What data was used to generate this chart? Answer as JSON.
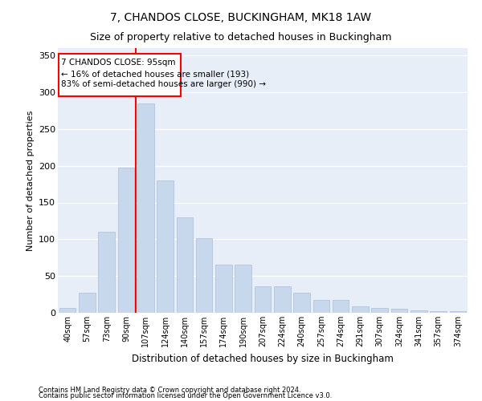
{
  "title": "7, CHANDOS CLOSE, BUCKINGHAM, MK18 1AW",
  "subtitle": "Size of property relative to detached houses in Buckingham",
  "xlabel": "Distribution of detached houses by size in Buckingham",
  "ylabel": "Number of detached properties",
  "bar_color": "#c8d8ec",
  "bar_edge_color": "#a8bedc",
  "background_color": "#e8eef8",
  "grid_color": "#ffffff",
  "categories": [
    "40sqm",
    "57sqm",
    "73sqm",
    "90sqm",
    "107sqm",
    "124sqm",
    "140sqm",
    "157sqm",
    "174sqm",
    "190sqm",
    "207sqm",
    "224sqm",
    "240sqm",
    "257sqm",
    "274sqm",
    "291sqm",
    "307sqm",
    "324sqm",
    "341sqm",
    "357sqm",
    "374sqm"
  ],
  "values": [
    7,
    27,
    110,
    197,
    285,
    180,
    130,
    102,
    66,
    66,
    36,
    36,
    27,
    17,
    17,
    9,
    7,
    5,
    3,
    2,
    2
  ],
  "red_line_index": 3.5,
  "annotation_title": "7 CHANDOS CLOSE: 95sqm",
  "annotation_line1": "← 16% of detached houses are smaller (193)",
  "annotation_line2": "83% of semi-detached houses are larger (990) →",
  "footnote1": "Contains HM Land Registry data © Crown copyright and database right 2024.",
  "footnote2": "Contains public sector information licensed under the Open Government Licence v3.0.",
  "ylim": [
    0,
    360
  ],
  "yticks": [
    0,
    50,
    100,
    150,
    200,
    250,
    300,
    350
  ],
  "figsize": [
    6.0,
    5.0
  ],
  "dpi": 100
}
